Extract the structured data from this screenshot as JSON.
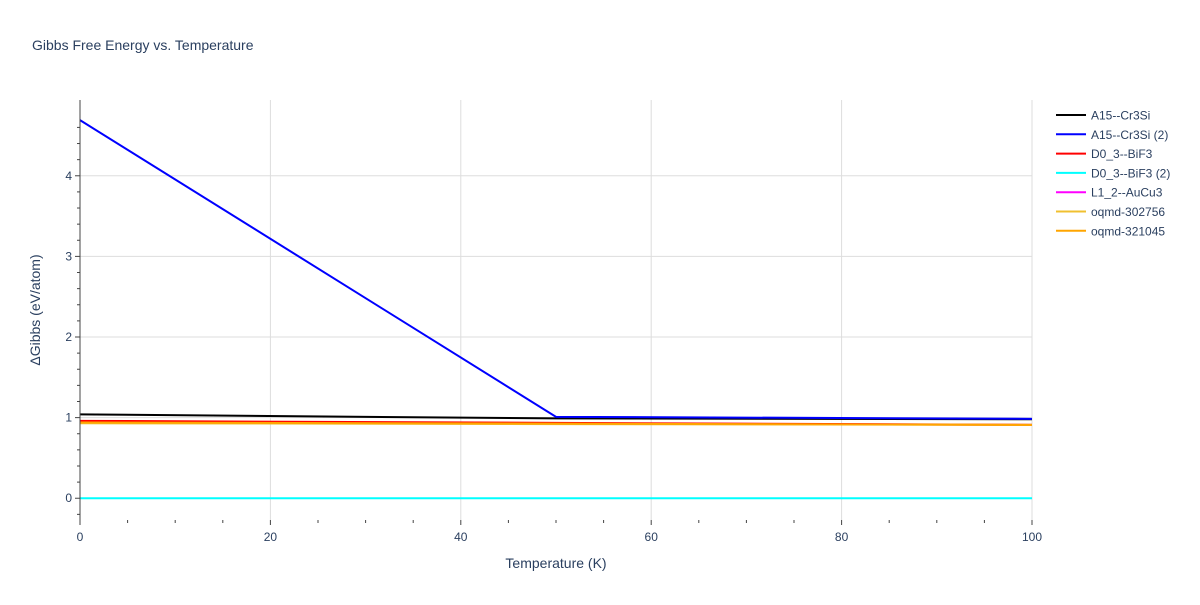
{
  "chart_data": {
    "type": "line",
    "title": "Gibbs Free Energy vs. Temperature",
    "xlabel": "Temperature (K)",
    "ylabel": "ΔGibbs (eV/atom)",
    "xlim": [
      0,
      100
    ],
    "ylim": [
      -0.27,
      4.94
    ],
    "xticks": [
      0,
      20,
      40,
      60,
      80,
      100
    ],
    "yticks": [
      0,
      1,
      2,
      3,
      4
    ],
    "grid": true,
    "legend_placement": "top-right",
    "series": [
      {
        "name": "A15--Cr3Si",
        "color": "#000000",
        "x": [
          0,
          50,
          100
        ],
        "y": [
          1.04,
          0.99,
          0.98
        ]
      },
      {
        "name": "A15--Cr3Si (2)",
        "color": "#0000ff",
        "x": [
          0,
          50,
          100
        ],
        "y": [
          4.69,
          1.01,
          0.985
        ]
      },
      {
        "name": "D0_3--BiF3",
        "color": "#ff0000",
        "x": [
          0,
          50,
          100
        ],
        "y": [
          0.96,
          0.935,
          0.91
        ]
      },
      {
        "name": "D0_3--BiF3 (2)",
        "color": "#00ffff",
        "x": [
          0,
          50,
          100
        ],
        "y": [
          0,
          0,
          0
        ]
      },
      {
        "name": "L1_2--AuCu3",
        "color": "#ff00ff",
        "x": [
          0,
          50,
          100
        ],
        "y": [
          0.95,
          0.93,
          0.91
        ]
      },
      {
        "name": "oqmd-302756",
        "color": "#f0c030",
        "x": [
          0,
          50,
          100
        ],
        "y": [
          0.93,
          0.92,
          0.91
        ]
      },
      {
        "name": "oqmd-321045",
        "color": "#ffa500",
        "x": [
          0,
          50,
          100
        ],
        "y": [
          0.94,
          0.925,
          0.91
        ]
      }
    ]
  }
}
